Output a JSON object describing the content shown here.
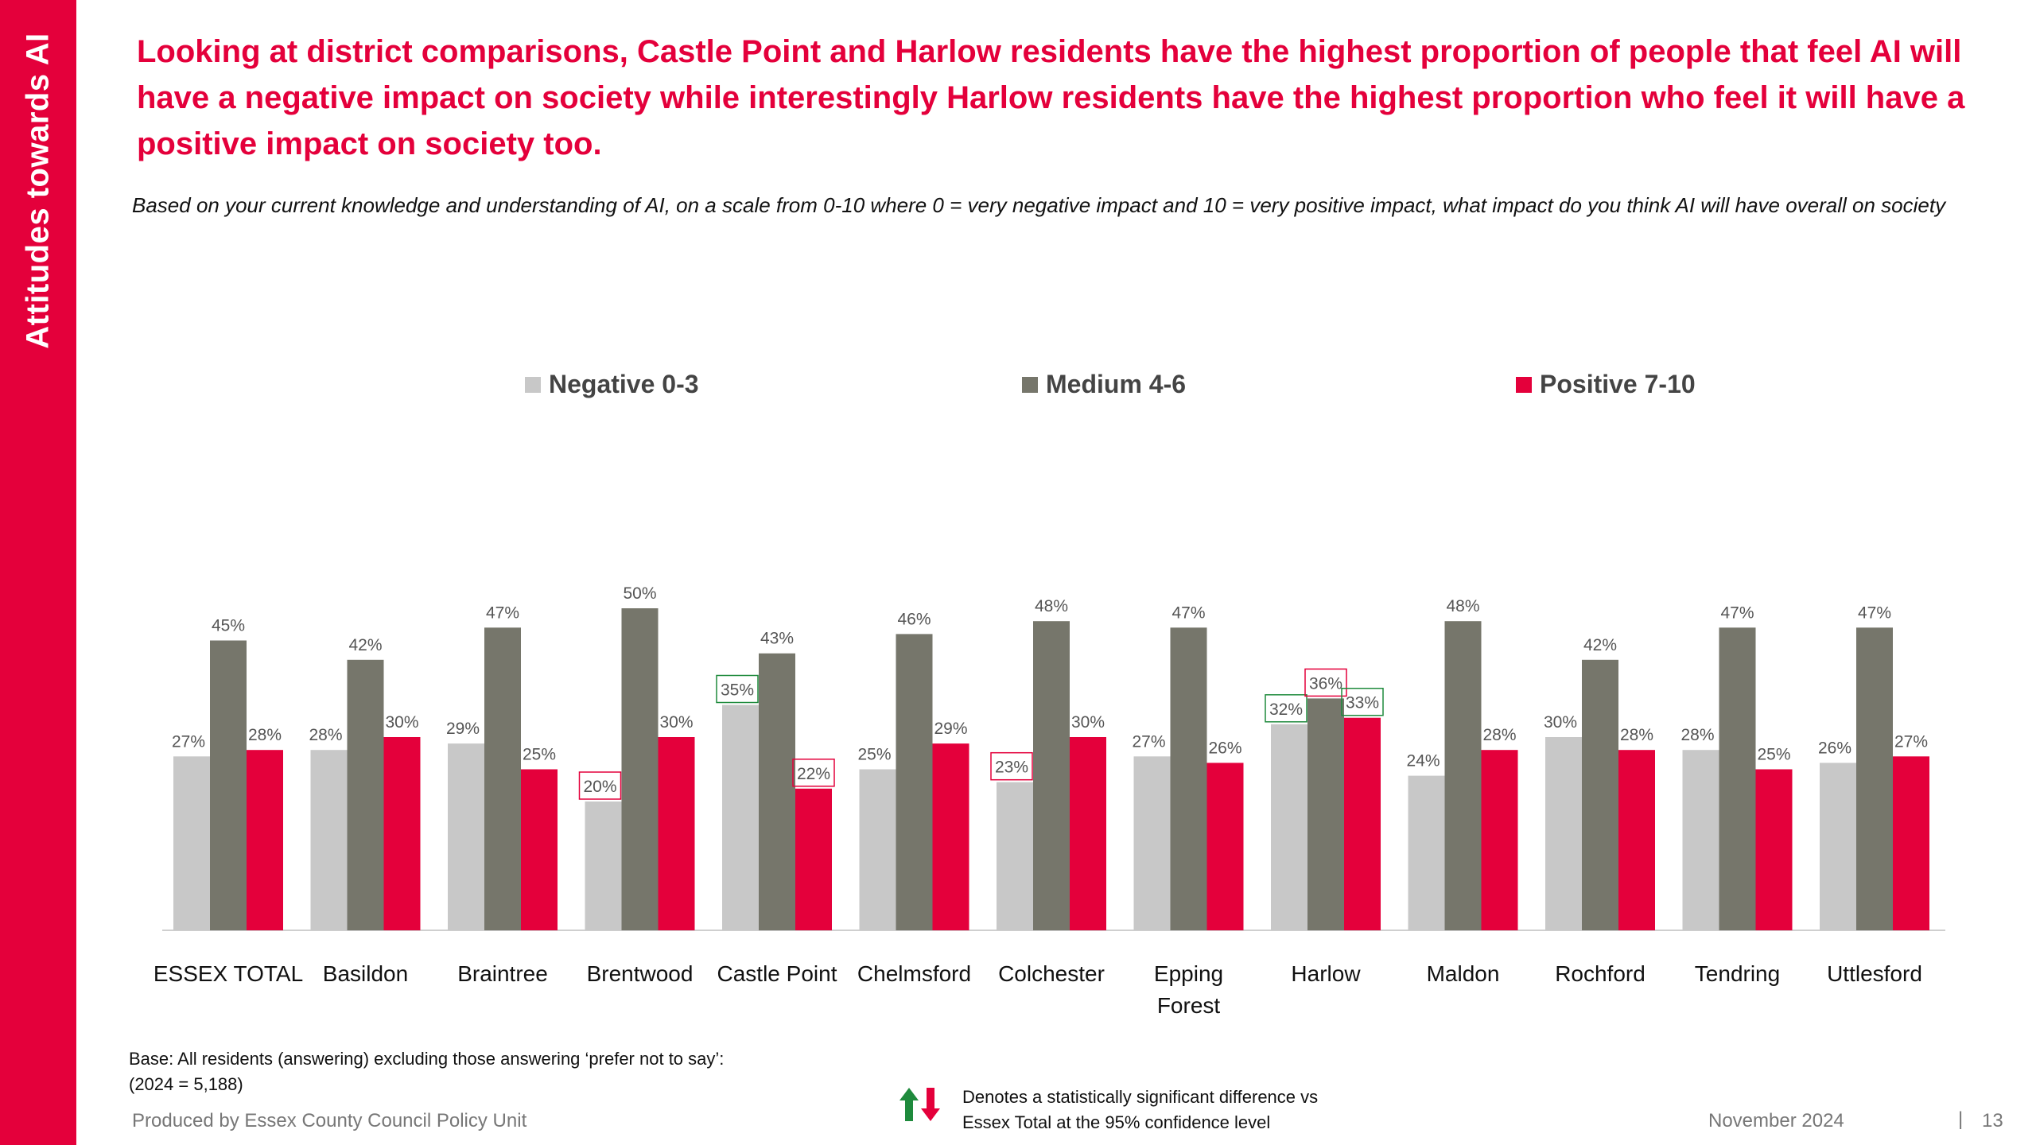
{
  "sidebar": {
    "title": "Attitudes towards AI"
  },
  "headline": "Looking at district comparisons, Castle Point and Harlow residents have the highest proportion of people that feel AI will have a negative impact on society while interestingly Harlow residents have the highest proportion who feel it will have a positive impact on society too.",
  "question": "Based on your current knowledge and understanding of AI, on a scale from 0-10 where 0 = very negative impact and 10 = very positive impact, what impact do you think AI will have overall on society",
  "colors": {
    "accent": "#e4003b",
    "negative": "#c8c8c8",
    "medium": "#76766b",
    "positive": "#e4003b",
    "sig_higher": "#1e8a3c",
    "sig_lower": "#e4003b"
  },
  "chart_data": {
    "type": "bar",
    "categories": [
      "ESSEX TOTAL",
      "Basildon",
      "Braintree",
      "Brentwood",
      "Castle Point",
      "Chelmsford",
      "Colchester",
      "Epping Forest",
      "Harlow",
      "Maldon",
      "Rochford",
      "Tendring",
      "Uttlesford"
    ],
    "series": [
      {
        "name": "Negative 0-3",
        "values": [
          27,
          28,
          29,
          20,
          35,
          25,
          23,
          27,
          32,
          24,
          30,
          28,
          26
        ],
        "significance": [
          "",
          "",
          "",
          "lower",
          "higher",
          "",
          "lower",
          "",
          "higher",
          "",
          "",
          "",
          ""
        ]
      },
      {
        "name": "Medium 4-6",
        "values": [
          45,
          42,
          47,
          50,
          43,
          46,
          48,
          47,
          36,
          48,
          42,
          47,
          47
        ],
        "significance": [
          "",
          "",
          "",
          "",
          "",
          "",
          "",
          "",
          "lower",
          "",
          "",
          "",
          ""
        ]
      },
      {
        "name": "Positive 7-10",
        "values": [
          28,
          30,
          25,
          30,
          22,
          29,
          30,
          26,
          33,
          28,
          28,
          25,
          27
        ],
        "significance": [
          "",
          "",
          "",
          "",
          "lower",
          "",
          "",
          "",
          "higher",
          "",
          "",
          "",
          ""
        ]
      }
    ],
    "value_suffix": "%",
    "ylim": [
      0,
      55
    ],
    "legend": "top",
    "grid": false
  },
  "footer": {
    "base_line1": "Base: All residents (answering) excluding those answering ‘prefer not to say’:",
    "base_line2": "(2024 = 5,188)",
    "sig_line1": "Denotes a statistically significant difference vs",
    "sig_line2": "Essex Total at the 95% confidence level",
    "produced_by": "Produced by Essex County Council Policy Unit",
    "date": "November 2024",
    "separator": "|",
    "page_number": "13"
  }
}
